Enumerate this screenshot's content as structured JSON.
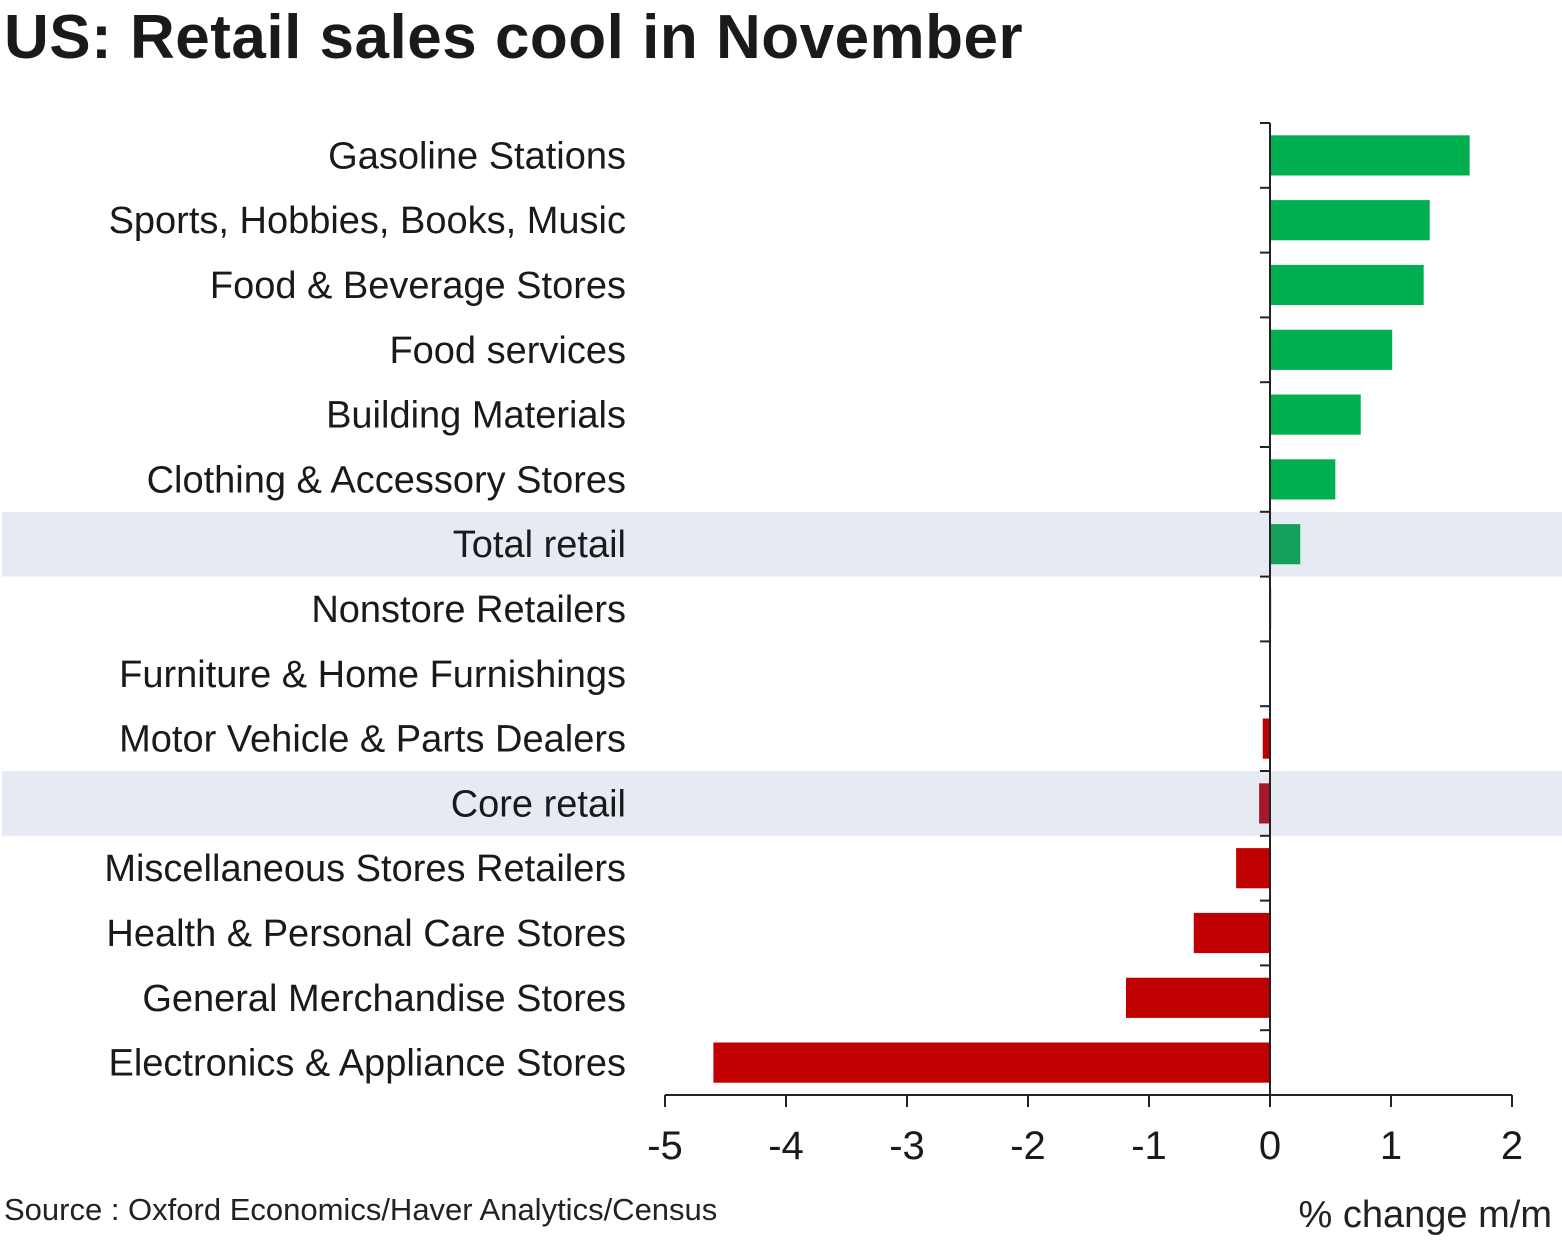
{
  "title": "US: Retail sales cool in November",
  "source": "Source : Oxford Economics/Haver Analytics/Census",
  "colors": {
    "positive": "#00b050",
    "negative": "#c00000",
    "highlight_band": "#e6ebf3",
    "total_bar": "#14a05a",
    "core_bar": "#a8182a"
  },
  "chart_data": {
    "type": "bar",
    "orientation": "horizontal",
    "xlabel": "% change m/m",
    "xlim": [
      -5,
      2
    ],
    "xticks": [
      "-5",
      "-4",
      "-3",
      "-2",
      "-1",
      "0",
      "1",
      "2"
    ],
    "categories": [
      "Gasoline Stations",
      "Sports, Hobbies, Books, Music",
      "Food & Beverage Stores",
      "Food services",
      "Building Materials",
      "Clothing & Accessory Stores",
      "Total retail",
      "Nonstore Retailers",
      "Furniture & Home Furnishings",
      "Motor Vehicle & Parts Dealers",
      "Core retail",
      "Miscellaneous Stores Retailers",
      "Health & Personal Care Stores",
      "General Merchandise Stores",
      "Electronics & Appliance Stores"
    ],
    "values": [
      1.65,
      1.32,
      1.27,
      1.01,
      0.75,
      0.54,
      0.25,
      0.01,
      0.0,
      -0.06,
      -0.09,
      -0.28,
      -0.63,
      -1.19,
      -4.6
    ],
    "highlighted": [
      "Total retail",
      "Core retail"
    ],
    "grid": false
  }
}
